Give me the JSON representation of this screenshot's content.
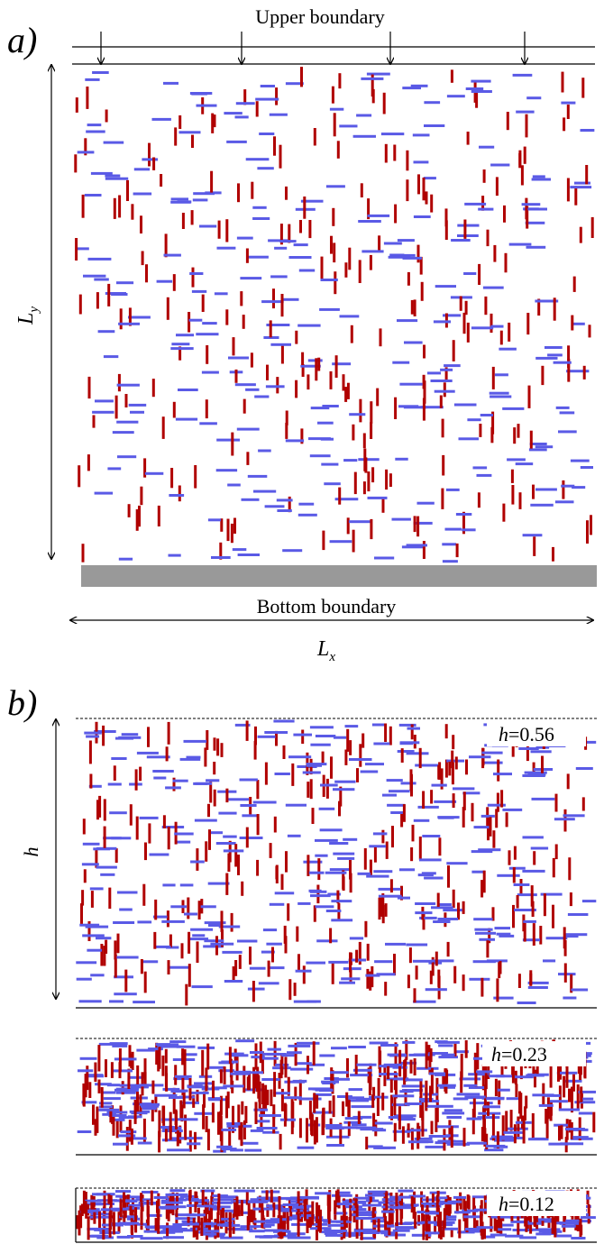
{
  "panel_a": {
    "tag": "a)",
    "top_label": "Upper boundary",
    "bottom_label": "Bottom boundary",
    "ly_label": "L",
    "ly_sub": "y",
    "lx_label": "L",
    "lx_sub": "x"
  },
  "panel_b": {
    "tag": "b)",
    "h_label": "h",
    "states": [
      {
        "h_var": "h",
        "h_val": "=0.56",
        "density": 0.56
      },
      {
        "h_var": "h",
        "h_val": "=0.23",
        "density": 0.23
      },
      {
        "h_var": "h",
        "h_val": "=0.12",
        "density": 0.12
      }
    ]
  },
  "colors": {
    "vertical_rods": "#b00000",
    "horizontal_rods": "#5a5ae6",
    "substrate": "#999999",
    "lines": "#000000"
  }
}
